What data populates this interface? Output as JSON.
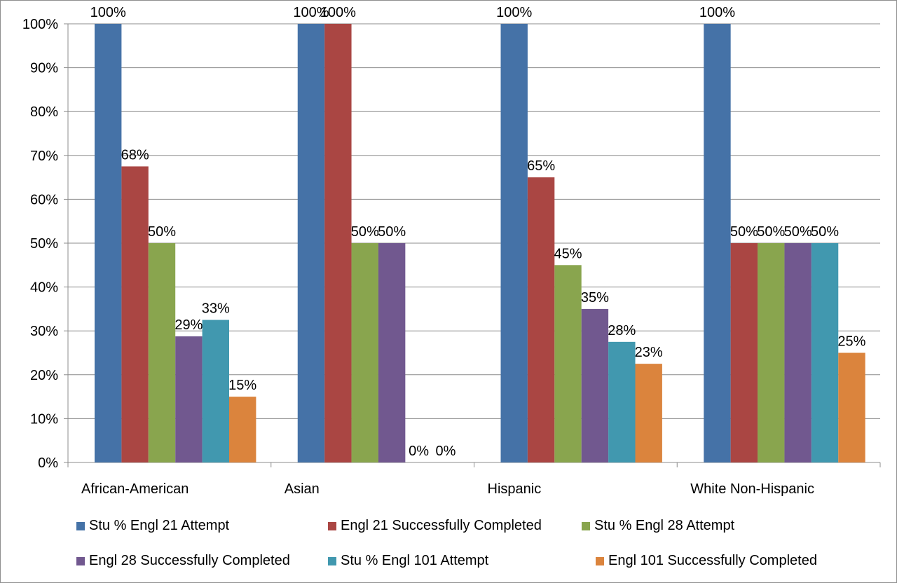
{
  "chart_data": {
    "type": "bar",
    "title": "",
    "xlabel": "",
    "ylabel": "",
    "ylim": [
      0,
      1
    ],
    "yticks": [
      "0%",
      "10%",
      "20%",
      "30%",
      "40%",
      "50%",
      "60%",
      "70%",
      "80%",
      "90%",
      "100%"
    ],
    "grid": true,
    "legend_position": "bottom",
    "categories": [
      "African-American",
      "Asian",
      "Hispanic",
      "White Non-Hispanic"
    ],
    "series": [
      {
        "name": "Stu % Engl 21 Attempt",
        "color": "#4572a7",
        "values": [
          1.0,
          1.0,
          1.0,
          1.0
        ],
        "labels": [
          "100%",
          "100%",
          "100%",
          "100%"
        ]
      },
      {
        "name": "Engl 21 Successfully Completed",
        "color": "#aa4643",
        "values": [
          0.675,
          1.0,
          0.65,
          0.5
        ],
        "labels": [
          "68%",
          "100%",
          "65%",
          "50%"
        ]
      },
      {
        "name": "Stu % Engl 28 Attempt",
        "color": "#89a54e",
        "values": [
          0.5,
          0.5,
          0.45,
          0.5
        ],
        "labels": [
          "50%",
          "50%",
          "45%",
          "50%"
        ]
      },
      {
        "name": "Engl 28 Successfully Completed",
        "color": "#71588f",
        "values": [
          0.2875,
          0.5,
          0.35,
          0.5
        ],
        "labels": [
          "29%",
          "50%",
          "35%",
          "50%"
        ]
      },
      {
        "name": "Stu % Engl 101 Attempt",
        "color": "#4198af",
        "values": [
          0.325,
          0.0,
          0.275,
          0.5
        ],
        "labels": [
          "33%",
          "0%",
          "28%",
          "50%"
        ]
      },
      {
        "name": "Engl 101 Successfully Completed",
        "color": "#db843d",
        "values": [
          0.15,
          0.0,
          0.225,
          0.25
        ],
        "labels": [
          "15%",
          "0%",
          "23%",
          "25%"
        ]
      }
    ]
  }
}
